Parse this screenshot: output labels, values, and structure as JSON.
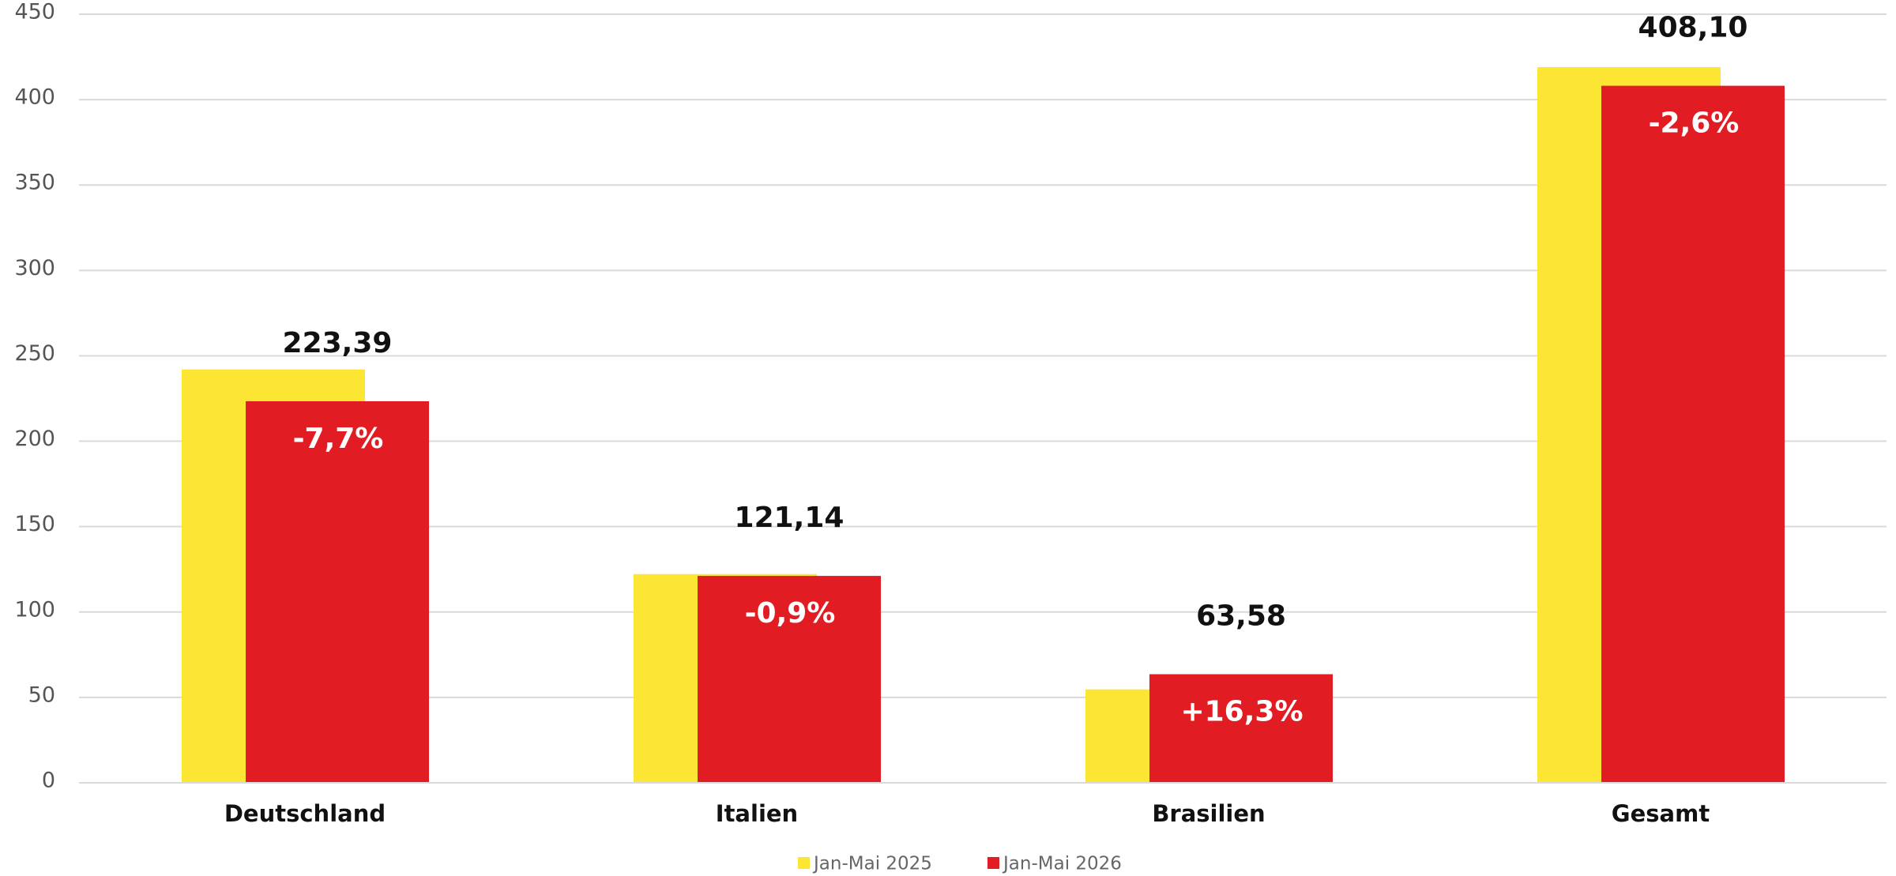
{
  "chart_data": {
    "type": "bar",
    "categories": [
      "Deutschland",
      "Italien",
      "Brasilien",
      "Gesamt"
    ],
    "series": [
      {
        "name": "Jan-Mai 2025",
        "color": "#fce533",
        "values": [
          242,
          122.2,
          54.7,
          419
        ]
      },
      {
        "name": "Jan-Mai 2026",
        "color": "#e11d23",
        "values": [
          223.39,
          121.14,
          63.58,
          408.1
        ],
        "value_labels": [
          "223,39",
          "121,14",
          "63,58",
          "408,10"
        ]
      }
    ],
    "annotations": [
      "-7,7%",
      "-0,9%",
      "+16,3%",
      "-2,6%"
    ],
    "ylim": [
      0,
      450
    ],
    "yticks": [
      0,
      50,
      100,
      150,
      200,
      250,
      300,
      350,
      400,
      450
    ],
    "grid": true,
    "legend": "bottom"
  }
}
